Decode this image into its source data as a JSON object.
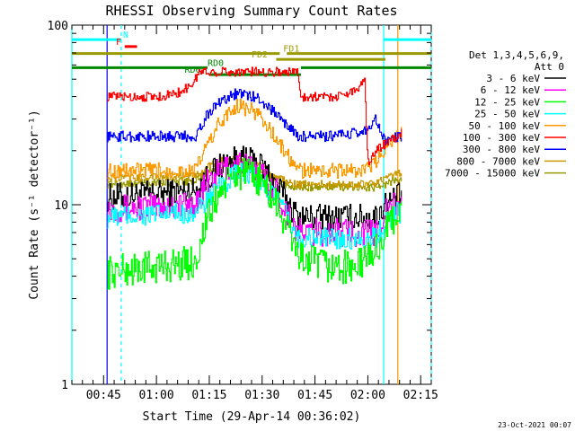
{
  "chart_data": {
    "type": "line",
    "title": "RHESSI Observing Summary Count Rates",
    "xlabel": "Start Time (29-Apr-14 00:36:02)",
    "ylabel": "Count Rate (s⁻¹ detector⁻¹)",
    "yscale": "log",
    "ylim": [
      1,
      100
    ],
    "xlim_minutes_after_start": [
      0,
      102
    ],
    "x_ticks": [
      {
        "t": 9,
        "label": "00:45"
      },
      {
        "t": 24,
        "label": "01:00"
      },
      {
        "t": 39,
        "label": "01:15"
      },
      {
        "t": 54,
        "label": "01:30"
      },
      {
        "t": 69,
        "label": "01:45"
      },
      {
        "t": 84,
        "label": "02:00"
      },
      {
        "t": 99,
        "label": "02:15"
      }
    ],
    "y_ticks": [
      {
        "v": 1,
        "label": "1"
      },
      {
        "v": 10,
        "label": "10"
      },
      {
        "v": 100,
        "label": "100"
      }
    ],
    "legend_header": [
      "Det 1,3,4,5,6,9,",
      "Att 0"
    ],
    "legend_position": "right",
    "timestamp": "23-Oct-2021 00:07",
    "data_start_min": 10,
    "data_end_min": 93.5,
    "series": [
      {
        "name": "3 - 6 keV",
        "color": "#000000",
        "x": [
          10,
          35,
          38,
          42,
          47,
          53,
          58,
          64,
          65,
          73,
          81,
          83,
          86,
          89,
          92,
          93.5
        ],
        "y": [
          11,
          12,
          14,
          16.5,
          18,
          17,
          13,
          8.5,
          8.5,
          8.5,
          8.5,
          8.5,
          8.5,
          10,
          11,
          11
        ]
      },
      {
        "name": "6 - 12 keV",
        "color": "#ff00ff",
        "x": [
          10,
          35,
          38,
          42,
          47,
          53,
          58,
          64,
          65,
          73,
          81,
          83,
          86,
          89,
          92,
          93.5
        ],
        "y": [
          9.5,
          10,
          13,
          15.5,
          17,
          15.5,
          12,
          7,
          7,
          7,
          7,
          7,
          7,
          9,
          10,
          10
        ]
      },
      {
        "name": "12 - 25 keV",
        "color": "#00ff00",
        "x": [
          10,
          35,
          38,
          42,
          47,
          53,
          58,
          64,
          65,
          73,
          81,
          83,
          86,
          89,
          92,
          93.5
        ],
        "y": [
          4.2,
          4.8,
          8,
          12,
          15,
          14,
          10,
          5.5,
          5,
          4.5,
          4.5,
          5,
          5.5,
          7,
          9,
          9
        ]
      },
      {
        "name": "25 - 50 keV",
        "color": "#00ffff",
        "x": [
          10,
          35,
          38,
          42,
          47,
          53,
          58,
          64,
          65,
          73,
          81,
          83,
          86,
          89,
          92,
          93.5
        ],
        "y": [
          8.5,
          9,
          10.5,
          12.5,
          15,
          14,
          11,
          6.5,
          6.5,
          6.5,
          6.5,
          6.5,
          6.5,
          8,
          9,
          9
        ]
      },
      {
        "name": "50 - 100 keV",
        "color": "#ff9900",
        "x": [
          10,
          35,
          38,
          42,
          47,
          53,
          58,
          64,
          65,
          73,
          81,
          83,
          86,
          89,
          92,
          93.5
        ],
        "y": [
          15.5,
          15.5,
          21,
          29,
          36,
          32,
          23,
          15.5,
          15.5,
          15.5,
          15.5,
          15.5,
          17,
          21,
          25,
          25
        ]
      },
      {
        "name": "100 - 300 keV",
        "color": "#ff0000",
        "x": [
          10,
          25,
          30,
          33,
          35,
          36,
          64,
          65,
          70,
          75,
          80,
          82,
          83,
          84,
          86,
          93.5
        ],
        "y": [
          40,
          40,
          42,
          45,
          50,
          55,
          55,
          40,
          40,
          40,
          43,
          47,
          52,
          17,
          20,
          25
        ]
      },
      {
        "name": "300 - 800 keV",
        "color": "#0000ff",
        "x": [
          10,
          35,
          38,
          42,
          47,
          53,
          58,
          64,
          65,
          73,
          81,
          83,
          86,
          89,
          92,
          93.5
        ],
        "y": [
          24,
          24,
          31,
          38,
          42,
          39,
          32,
          24,
          24,
          24,
          25,
          26,
          30,
          22,
          24,
          24
        ]
      },
      {
        "name": "800 - 7000 keV",
        "color": "#cc9900",
        "x": [
          10,
          35,
          38,
          42,
          47,
          53,
          58,
          64,
          65,
          73,
          81,
          83,
          86,
          89,
          92,
          93.5
        ],
        "y": [
          14,
          14.5,
          16,
          17.5,
          18,
          16.5,
          14,
          13,
          13,
          13,
          13,
          13,
          13,
          14,
          15,
          15
        ]
      },
      {
        "name": "7000 - 15000 keV",
        "color": "#999900",
        "x": [
          10,
          35,
          38,
          42,
          47,
          53,
          58,
          64,
          65,
          73,
          81,
          83,
          86,
          89,
          92,
          93.5
        ],
        "y": [
          13,
          13.5,
          15,
          16.5,
          17.5,
          16,
          13.5,
          12.5,
          12.5,
          12.5,
          12.5,
          12.5,
          12.5,
          13,
          14,
          14
        ]
      }
    ],
    "annotations": [
      {
        "label": "N",
        "color": "#00ffff",
        "x_start": 0,
        "x_end": 14,
        "y": 83,
        "label_x": 14.5
      },
      {
        "label": "F",
        "color": "#ff0000",
        "x_start": 15,
        "x_end": 18.5,
        "y": 76,
        "label_x": 12.5
      },
      {
        "label": "FD1",
        "color": "#999900",
        "x_start": 0,
        "x_end": 59,
        "y": 69.5,
        "label_x": 60
      },
      {
        "label": "FD1",
        "color": "#999900",
        "x_start": 61,
        "x_end": 102,
        "y": 69.5,
        "label_x": null
      },
      {
        "label": "FD2",
        "color": "#999900",
        "x_start": 58,
        "x_end": 89,
        "y": 64.5,
        "label_x": 51
      },
      {
        "label": "RD0",
        "color": "#008800",
        "x_start": 0,
        "x_end": 38.5,
        "y": 58,
        "label_x": 38.5
      },
      {
        "label": "RD0",
        "color": "#008800",
        "x_start": 65,
        "x_end": 102,
        "y": 58,
        "label_x": null
      },
      {
        "label": "RD6",
        "color": "#008800",
        "x_start": 39,
        "x_end": 65,
        "y": 53,
        "label_x": 32
      },
      {
        "label": "N",
        "color": "#00ffff",
        "x_start": 88.5,
        "x_end": 102,
        "y": 83,
        "label_x": null
      }
    ],
    "vertical_markers": [
      {
        "t": 0,
        "color": "#00ffff",
        "style": "solid"
      },
      {
        "t": 14,
        "color": "#00ffff",
        "style": "dashed"
      },
      {
        "t": 88.5,
        "color": "#00ffff",
        "style": "solid"
      },
      {
        "t": 102,
        "color": "#00ffff",
        "style": "dashed"
      },
      {
        "t": 10,
        "color": "#0000ff",
        "style": "solid"
      },
      {
        "t": 92.5,
        "color": "#ff9900",
        "style": "solid"
      }
    ]
  }
}
